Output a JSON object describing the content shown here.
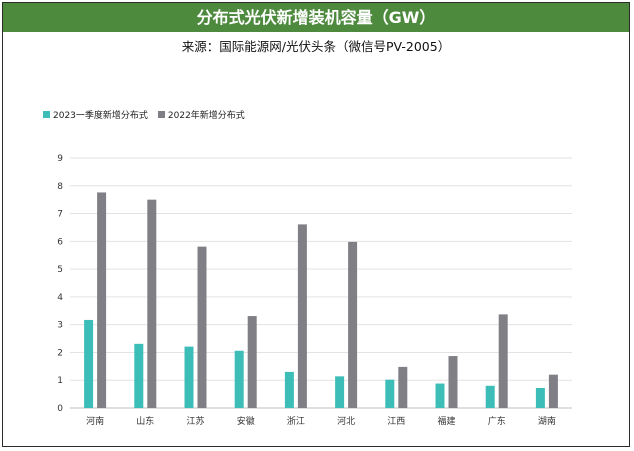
{
  "header": {
    "title": "分布式光伏新增装机容量（GW）",
    "subtitle": "来源：国际能源网/光伏头条（微信号PV-2005）"
  },
  "colors": {
    "title_bg": "#4e8a3e",
    "series_2023q1": "#3dbdb8",
    "series_2022": "#807f86"
  },
  "chart_data": {
    "type": "bar",
    "title": "分布式光伏新增装机容量（GW）",
    "categories": [
      "河南",
      "山东",
      "江苏",
      "安徽",
      "浙江",
      "河北",
      "江西",
      "福建",
      "广东",
      "湖南"
    ],
    "series": [
      {
        "name": "2023一季度新增分布式",
        "values": [
          3.17,
          2.31,
          2.21,
          2.06,
          1.3,
          1.14,
          1.02,
          0.88,
          0.8,
          0.72
        ]
      },
      {
        "name": "2022年新增分布式",
        "values": [
          7.76,
          7.5,
          5.81,
          3.31,
          6.61,
          5.98,
          1.48,
          1.87,
          3.37,
          1.2
        ]
      }
    ],
    "xlabel": "",
    "ylabel": "",
    "ylim": [
      0,
      9
    ],
    "yticks": [
      0,
      1,
      2,
      3,
      4,
      5,
      6,
      7,
      8,
      9
    ],
    "grid": true,
    "legend_position": "top-left"
  }
}
